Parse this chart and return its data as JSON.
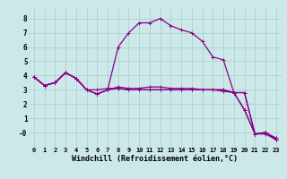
{
  "title": "",
  "xlabel": "Windchill (Refroidissement éolien,°C)",
  "ylabel": "",
  "bg_color": "#cce8e8",
  "line_color": "#880088",
  "grid_color": "#aacccc",
  "xlim": [
    -0.5,
    23.5
  ],
  "ylim": [
    -1.0,
    8.8
  ],
  "yticks": [
    0,
    1,
    2,
    3,
    4,
    5,
    6,
    7,
    8
  ],
  "ytick_labels": [
    "-0",
    "1",
    "2",
    "3",
    "4",
    "5",
    "6",
    "7",
    "8"
  ],
  "xticks": [
    0,
    1,
    2,
    3,
    4,
    5,
    6,
    7,
    8,
    9,
    10,
    11,
    12,
    13,
    14,
    15,
    16,
    17,
    18,
    19,
    20,
    21,
    22,
    23
  ],
  "lines": [
    {
      "x": [
        0,
        1,
        2,
        3,
        4,
        5,
        6,
        7,
        8,
        9,
        10,
        11,
        12,
        13,
        14,
        15,
        16,
        17,
        18,
        19,
        20,
        21,
        22,
        23
      ],
      "y": [
        3.9,
        3.3,
        3.5,
        4.2,
        3.8,
        3.0,
        2.7,
        3.0,
        6.0,
        7.0,
        7.7,
        7.7,
        8.0,
        7.5,
        7.2,
        7.0,
        6.4,
        5.3,
        5.1,
        2.8,
        1.6,
        -0.1,
        -0.1,
        -0.5
      ]
    },
    {
      "x": [
        0,
        1,
        2,
        3,
        4,
        5,
        6,
        7,
        8,
        9,
        10,
        11,
        12,
        13,
        14,
        15,
        16,
        17,
        18,
        19,
        20,
        21,
        22,
        23
      ],
      "y": [
        3.9,
        3.3,
        3.5,
        4.2,
        3.8,
        3.0,
        3.0,
        3.1,
        3.1,
        3.0,
        3.0,
        3.0,
        3.0,
        3.0,
        3.0,
        3.0,
        3.0,
        3.0,
        3.0,
        2.8,
        2.8,
        -0.1,
        -0.0,
        -0.4
      ]
    },
    {
      "x": [
        0,
        1,
        2,
        3,
        4,
        5,
        6,
        7,
        8,
        9,
        10,
        11,
        12,
        13,
        14,
        15,
        16,
        17,
        18,
        19,
        20,
        21,
        22,
        23
      ],
      "y": [
        3.9,
        3.3,
        3.5,
        4.2,
        3.8,
        3.0,
        2.7,
        3.0,
        3.1,
        3.0,
        3.0,
        3.0,
        3.0,
        3.0,
        3.0,
        3.0,
        3.0,
        3.0,
        3.0,
        2.8,
        1.6,
        -0.1,
        -0.0,
        -0.5
      ]
    },
    {
      "x": [
        0,
        1,
        2,
        3,
        4,
        5,
        6,
        7,
        8,
        9,
        10,
        11,
        12,
        13,
        14,
        15,
        16,
        17,
        18,
        19,
        20,
        21,
        22,
        23
      ],
      "y": [
        3.9,
        3.3,
        3.5,
        4.2,
        3.8,
        3.0,
        2.7,
        3.0,
        3.2,
        3.1,
        3.1,
        3.2,
        3.2,
        3.1,
        3.1,
        3.1,
        3.0,
        3.0,
        2.9,
        2.8,
        2.8,
        -0.1,
        -0.0,
        -0.4
      ]
    }
  ],
  "marker": "+",
  "markersize": 3,
  "linewidth": 0.9,
  "tick_fontsize": 5.0,
  "xlabel_fontsize": 6.0
}
